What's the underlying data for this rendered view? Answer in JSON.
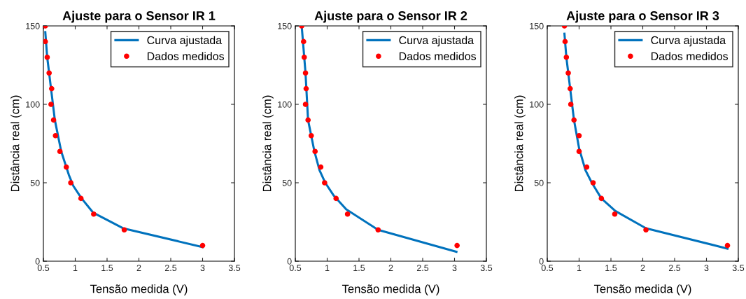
{
  "chart_data": [
    {
      "type": "line",
      "title": "Ajuste para o Sensor IR 1",
      "xlabel": "Tensão medida (V)",
      "ylabel": "Distância real (cm)",
      "xlim": [
        0.5,
        3.5
      ],
      "ylim": [
        0,
        150
      ],
      "xticks": [
        0.5,
        1,
        1.5,
        2,
        2.5,
        3,
        3.5
      ],
      "yticks": [
        0,
        50,
        100,
        150
      ],
      "legend": "top right",
      "grid": false,
      "series": [
        {
          "name": "Curva ajustada",
          "color": "#0072bd",
          "marker": "none",
          "x": [
            0.53,
            0.56,
            0.62,
            0.68,
            0.78,
            0.9,
            0.97,
            1.1,
            1.28,
            1.75,
            3.0
          ],
          "values": [
            146,
            130,
            110,
            90,
            70,
            55,
            48,
            40,
            31,
            21,
            9
          ]
        },
        {
          "name": "Dados medidos",
          "type": "scatter",
          "color": "#ff0000",
          "marker": "circle",
          "x": [
            0.53,
            0.53,
            0.56,
            0.59,
            0.63,
            0.62,
            0.66,
            0.69,
            0.76,
            0.86,
            0.93,
            1.09,
            1.29,
            1.77,
            3.0
          ],
          "values": [
            150,
            140,
            130,
            120,
            110,
            100,
            90,
            80,
            70,
            60,
            50,
            40,
            30,
            20,
            10
          ]
        }
      ]
    },
    {
      "type": "line",
      "title": "Ajuste para o Sensor IR 2",
      "xlabel": "Tensão medida (V)",
      "ylabel": "Distância real (cm)",
      "xlim": [
        0.5,
        3.5
      ],
      "ylim": [
        0,
        150
      ],
      "xticks": [
        0.5,
        1,
        1.5,
        2,
        2.5,
        3,
        3.5
      ],
      "yticks": [
        0,
        50,
        100,
        150
      ],
      "legend": "top right",
      "grid": false,
      "series": [
        {
          "name": "Curva ajustada",
          "color": "#0072bd",
          "marker": "none",
          "x": [
            0.6,
            0.66,
            0.7,
            0.8,
            0.88,
            0.97,
            1.1,
            1.3,
            1.8,
            3.03
          ],
          "values": [
            150,
            120,
            90,
            70,
            58,
            50,
            42,
            33,
            20,
            6
          ]
        },
        {
          "name": "Dados medidos",
          "type": "scatter",
          "color": "#ff0000",
          "marker": "circle",
          "x": [
            0.6,
            0.63,
            0.64,
            0.66,
            0.67,
            0.66,
            0.7,
            0.75,
            0.81,
            0.9,
            0.96,
            1.14,
            1.32,
            1.8,
            3.04
          ],
          "values": [
            150,
            140,
            130,
            120,
            110,
            100,
            90,
            80,
            70,
            60,
            50,
            40,
            30,
            20,
            10
          ]
        }
      ]
    },
    {
      "type": "line",
      "title": "Ajuste para o Sensor IR 3",
      "xlabel": "Tensão medida (V)",
      "ylabel": "Distância real (cm)",
      "xlim": [
        0.5,
        3.5
      ],
      "ylim": [
        0,
        150
      ],
      "xticks": [
        0.5,
        1,
        1.5,
        2,
        2.5,
        3,
        3.5
      ],
      "yticks": [
        0,
        50,
        100,
        150
      ],
      "legend": "top right",
      "grid": false,
      "series": [
        {
          "name": "Curva ajustada",
          "color": "#0072bd",
          "marker": "none",
          "x": [
            0.77,
            0.8,
            0.86,
            0.92,
            1.0,
            1.1,
            1.2,
            1.35,
            1.57,
            2.05,
            3.33
          ],
          "values": [
            145,
            130,
            110,
            90,
            72,
            58,
            50,
            40,
            32,
            21,
            8
          ]
        },
        {
          "name": "Dados medidos",
          "type": "scatter",
          "color": "#ff0000",
          "marker": "circle",
          "x": [
            0.77,
            0.78,
            0.8,
            0.83,
            0.86,
            0.87,
            0.92,
            1.0,
            1.0,
            1.12,
            1.22,
            1.35,
            1.56,
            2.05,
            3.33
          ],
          "values": [
            150,
            140,
            130,
            120,
            110,
            100,
            90,
            80,
            70,
            60,
            50,
            40,
            30,
            20,
            10
          ]
        }
      ]
    }
  ]
}
